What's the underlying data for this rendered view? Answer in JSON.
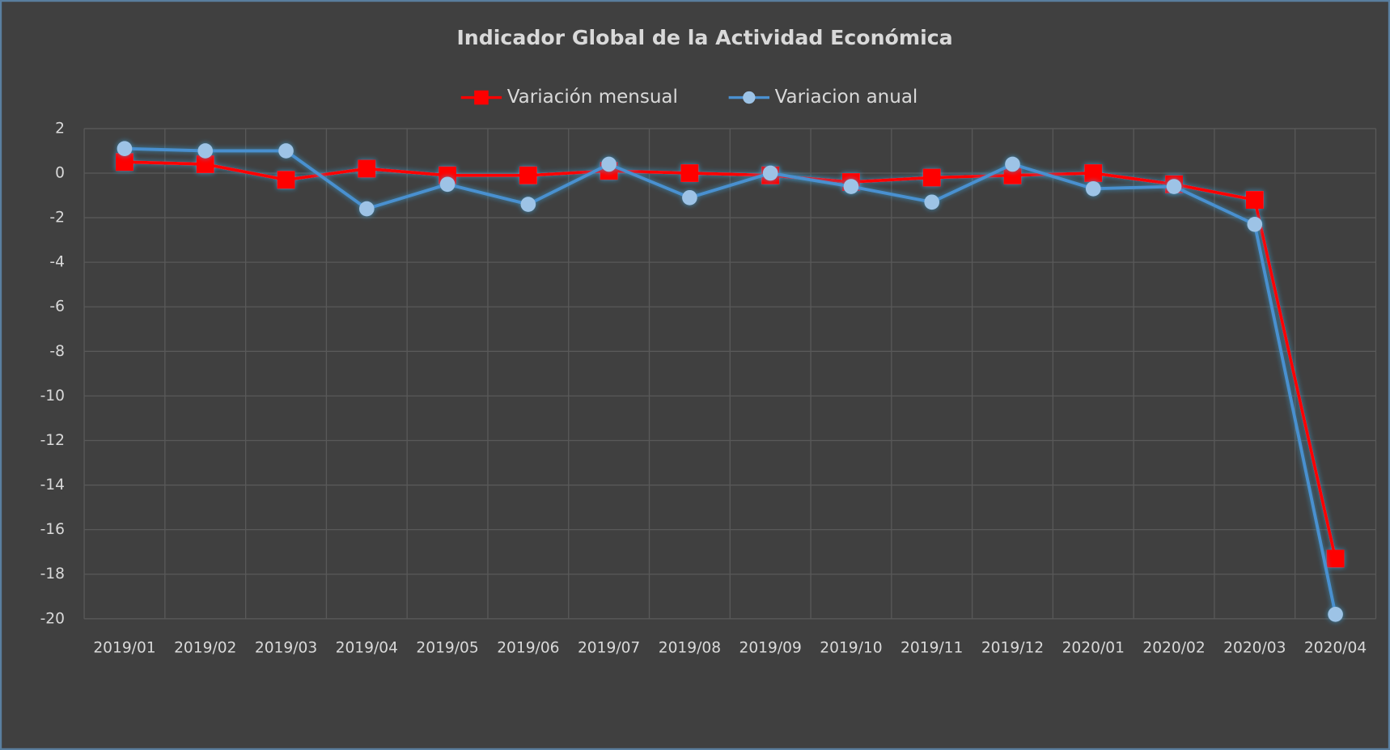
{
  "chart_data": {
    "type": "line",
    "title": "Indicador Global de la Actividad Económica",
    "categories": [
      "2019/01",
      "2019/02",
      "2019/03",
      "2019/04",
      "2019/05",
      "2019/06",
      "2019/07",
      "2019/08",
      "2019/09",
      "2019/10",
      "2019/11",
      "2019/12",
      "2020/01",
      "2020/02",
      "2020/03",
      "2020/04"
    ],
    "series": [
      {
        "name": "Variación mensual",
        "color": "#ff0000",
        "marker": "square",
        "values": [
          0.5,
          0.4,
          -0.3,
          0.2,
          -0.1,
          -0.1,
          0.1,
          0.0,
          -0.1,
          -0.4,
          -0.2,
          -0.1,
          0.0,
          -0.5,
          -1.2,
          -17.3
        ]
      },
      {
        "name": "Variacion anual",
        "color": "#4a90d0",
        "marker_color": "#9dc3e6",
        "marker": "circle",
        "values": [
          1.1,
          1.0,
          1.0,
          -1.6,
          -0.5,
          -1.4,
          0.4,
          -1.1,
          0.0,
          -0.6,
          -1.3,
          0.4,
          -0.7,
          -0.6,
          -2.3,
          -19.8
        ]
      }
    ],
    "ylim": [
      -20,
      2
    ],
    "yticks": [
      2,
      0,
      -2,
      -4,
      -6,
      -8,
      -10,
      -12,
      -14,
      -16,
      -18,
      -20
    ],
    "grid": true,
    "legend": "top"
  }
}
